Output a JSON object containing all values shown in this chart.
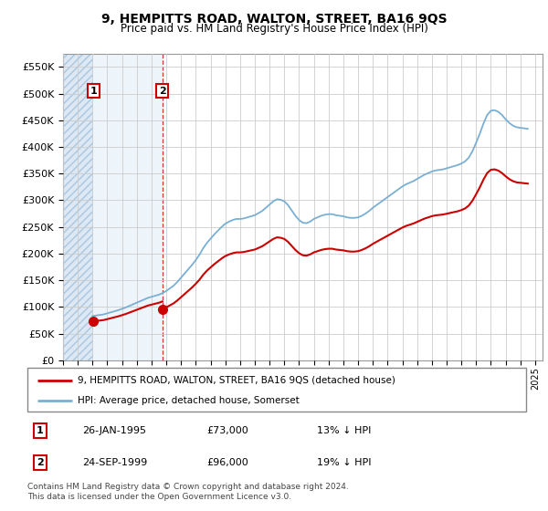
{
  "title": "9, HEMPITTS ROAD, WALTON, STREET, BA16 9QS",
  "subtitle": "Price paid vs. HM Land Registry's House Price Index (HPI)",
  "legend_label_red": "9, HEMPITTS ROAD, WALTON, STREET, BA16 9QS (detached house)",
  "legend_label_blue": "HPI: Average price, detached house, Somerset",
  "footer": "Contains HM Land Registry data © Crown copyright and database right 2024.\nThis data is licensed under the Open Government Licence v3.0.",
  "transactions": [
    {
      "label": "1",
      "date": "26-JAN-1995",
      "price": 73000,
      "hpi_rel": "13% ↓ HPI",
      "x": 1995.07
    },
    {
      "label": "2",
      "date": "24-SEP-1999",
      "price": 96000,
      "hpi_rel": "19% ↓ HPI",
      "x": 1999.73
    }
  ],
  "ylim": [
    0,
    575000
  ],
  "xlim_start": 1993.0,
  "xlim_end": 2025.5,
  "red_line_color": "#cc0000",
  "blue_line_color": "#7aafd4",
  "grid_color": "#cccccc",
  "marker_color": "#cc0000",
  "hatch_color": "#c5d8ed",
  "hatch2_color": "#dce9f5",
  "ytick_labels": [
    "£0",
    "£50K",
    "£100K",
    "£150K",
    "£200K",
    "£250K",
    "£300K",
    "£350K",
    "£400K",
    "£450K",
    "£500K",
    "£550K"
  ],
  "ytick_values": [
    0,
    50000,
    100000,
    150000,
    200000,
    250000,
    300000,
    350000,
    400000,
    450000,
    500000,
    550000
  ],
  "years_hpi": [
    1995.0,
    1995.25,
    1995.5,
    1995.75,
    1996.0,
    1996.25,
    1996.5,
    1996.75,
    1997.0,
    1997.25,
    1997.5,
    1997.75,
    1998.0,
    1998.25,
    1998.5,
    1998.75,
    1999.0,
    1999.25,
    1999.5,
    1999.75,
    2000.0,
    2000.25,
    2000.5,
    2000.75,
    2001.0,
    2001.25,
    2001.5,
    2001.75,
    2002.0,
    2002.25,
    2002.5,
    2002.75,
    2003.0,
    2003.25,
    2003.5,
    2003.75,
    2004.0,
    2004.25,
    2004.5,
    2004.75,
    2005.0,
    2005.25,
    2005.5,
    2005.75,
    2006.0,
    2006.25,
    2006.5,
    2006.75,
    2007.0,
    2007.25,
    2007.5,
    2007.75,
    2008.0,
    2008.25,
    2008.5,
    2008.75,
    2009.0,
    2009.25,
    2009.5,
    2009.75,
    2010.0,
    2010.25,
    2010.5,
    2010.75,
    2011.0,
    2011.25,
    2011.5,
    2011.75,
    2012.0,
    2012.25,
    2012.5,
    2012.75,
    2013.0,
    2013.25,
    2013.5,
    2013.75,
    2014.0,
    2014.25,
    2014.5,
    2014.75,
    2015.0,
    2015.25,
    2015.5,
    2015.75,
    2016.0,
    2016.25,
    2016.5,
    2016.75,
    2017.0,
    2017.25,
    2017.5,
    2017.75,
    2018.0,
    2018.25,
    2018.5,
    2018.75,
    2019.0,
    2019.25,
    2019.5,
    2019.75,
    2020.0,
    2020.25,
    2020.5,
    2020.75,
    2021.0,
    2021.25,
    2021.5,
    2021.75,
    2022.0,
    2022.25,
    2022.5,
    2022.75,
    2023.0,
    2023.25,
    2023.5,
    2023.75,
    2024.0,
    2024.25,
    2024.5
  ],
  "hpi_values": [
    83000,
    84000,
    85000,
    86000,
    88000,
    90000,
    92000,
    94000,
    96500,
    99000,
    102000,
    105000,
    108000,
    111000,
    114000,
    117000,
    119000,
    121000,
    123000,
    126000,
    130000,
    135000,
    140000,
    147000,
    155000,
    163000,
    171000,
    179000,
    188000,
    198000,
    210000,
    220000,
    228000,
    236000,
    243000,
    250000,
    256000,
    260000,
    263000,
    265000,
    265000,
    266000,
    268000,
    270000,
    272000,
    276000,
    280000,
    286000,
    292000,
    298000,
    302000,
    301000,
    298000,
    291000,
    281000,
    271000,
    263000,
    258000,
    257000,
    260000,
    265000,
    268000,
    271000,
    273000,
    274000,
    274000,
    272000,
    271000,
    270000,
    268000,
    267000,
    267000,
    268000,
    271000,
    275000,
    280000,
    286000,
    291000,
    296000,
    301000,
    306000,
    311000,
    316000,
    321000,
    326000,
    330000,
    333000,
    336000,
    340000,
    344000,
    348000,
    351000,
    354000,
    356000,
    357000,
    358000,
    360000,
    362000,
    364000,
    366000,
    369000,
    373000,
    380000,
    392000,
    408000,
    425000,
    444000,
    460000,
    468000,
    469000,
    466000,
    460000,
    452000,
    445000,
    440000,
    437000,
    436000,
    435000,
    434000
  ]
}
